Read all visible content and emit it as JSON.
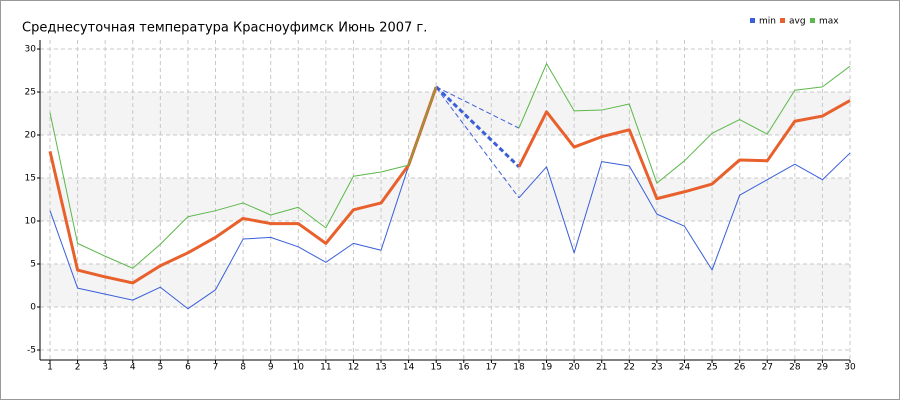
{
  "chart_data": {
    "type": "line",
    "title": "Среднесуточная температура Красноуфимск  Июнь 2007 г.",
    "x": [
      1,
      2,
      3,
      4,
      5,
      6,
      7,
      8,
      9,
      10,
      11,
      12,
      13,
      14,
      15,
      16,
      17,
      18,
      19,
      20,
      21,
      22,
      23,
      24,
      25,
      26,
      27,
      28,
      29,
      30
    ],
    "series": [
      {
        "name": "min",
        "color": "#3a5fd9",
        "width": 1,
        "values": [
          11.2,
          2.2,
          1.5,
          0.8,
          2.3,
          -0.2,
          2.0,
          7.9,
          8.1,
          7.0,
          5.2,
          7.4,
          6.6,
          16.4,
          25.5,
          null,
          null,
          12.7,
          16.3,
          6.3,
          16.9,
          16.4,
          10.8,
          9.4,
          4.3,
          13.0,
          14.8,
          16.6,
          14.8,
          17.9
        ]
      },
      {
        "name": "avg",
        "color": "#e8602c",
        "width": 3,
        "values": [
          18.1,
          4.3,
          3.5,
          2.8,
          4.8,
          6.3,
          8.1,
          10.3,
          9.7,
          9.7,
          7.4,
          11.3,
          12.1,
          16.5,
          25.6,
          null,
          null,
          16.3,
          22.7,
          18.6,
          19.8,
          20.6,
          12.6,
          13.4,
          14.3,
          17.1,
          17.0,
          21.6,
          22.2,
          24.0
        ]
      },
      {
        "name": "max",
        "color": "#5cb84a",
        "width": 1,
        "values": [
          22.6,
          7.4,
          5.9,
          4.5,
          7.3,
          10.5,
          11.2,
          12.1,
          10.7,
          11.6,
          9.2,
          15.2,
          15.7,
          16.5,
          25.6,
          null,
          null,
          20.8,
          28.3,
          22.8,
          22.9,
          23.6,
          14.4,
          17.0,
          20.2,
          21.8,
          20.1,
          25.2,
          25.6,
          28.0
        ]
      }
    ],
    "xlim": [
      1,
      30
    ],
    "xticks": [
      1,
      2,
      3,
      4,
      5,
      6,
      7,
      8,
      9,
      10,
      11,
      12,
      13,
      14,
      15,
      16,
      17,
      18,
      19,
      20,
      21,
      22,
      23,
      24,
      25,
      26,
      27,
      28,
      29,
      30
    ],
    "ylim": [
      -5,
      30
    ],
    "yticks": [
      -5,
      0,
      5,
      10,
      15,
      20,
      25,
      30
    ],
    "grid": true
  }
}
